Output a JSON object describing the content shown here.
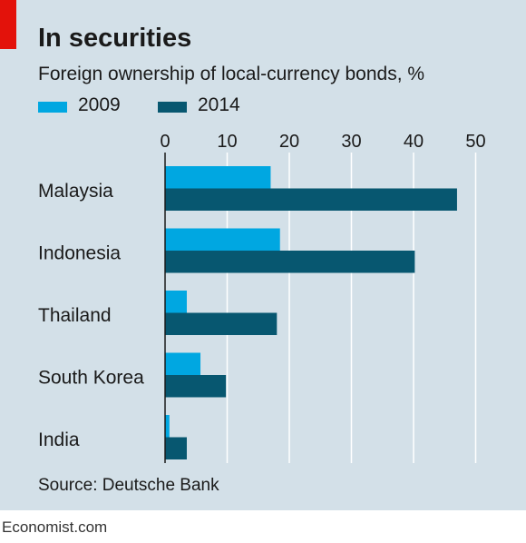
{
  "title": "In securities",
  "subtitle": "Foreign ownership of local-currency bonds, %",
  "source": "Source: Deutsche Bank",
  "footer": "Economist.com",
  "colors": {
    "s2009": "#00a7e1",
    "s2014": "#075770",
    "accent_red": "#e3120b",
    "panel": "#d3e0e8",
    "grid": "#ffffff"
  },
  "legend": {
    "label_2009": "2009",
    "label_2014": "2014"
  },
  "chart_data": {
    "type": "bar",
    "orientation": "horizontal",
    "title": "In securities",
    "subtitle": "Foreign ownership of local-currency bonds, %",
    "categories": [
      "Malaysia",
      "Indonesia",
      "Thailand",
      "South Korea",
      "India"
    ],
    "series": [
      {
        "name": "2009",
        "values": [
          17,
          18.5,
          3.5,
          5.7,
          0.7
        ]
      },
      {
        "name": "2014",
        "values": [
          47,
          40.2,
          18,
          9.8,
          3.5
        ]
      }
    ],
    "xlim": [
      0,
      50
    ],
    "xticks": [
      "0",
      "10",
      "20",
      "30",
      "40",
      "50"
    ],
    "grid": true,
    "legend_position": "top-left"
  }
}
